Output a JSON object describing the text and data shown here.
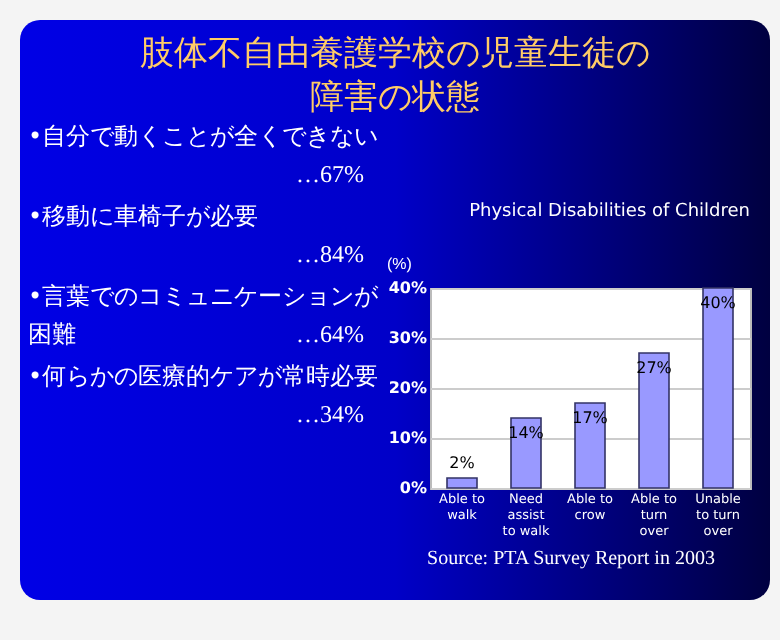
{
  "chart_data": [
    {
      "type": "other",
      "title": "肢体不自由養護学校の児童生徒の障害の状態",
      "annotations": [
        "•自分で動くことが全くできない",
        "…67%",
        "•移動に車椅子が必要",
        "…84%",
        "•言葉でのコミュニケーションが困難",
        "…64%",
        "•何らかの医療的ケアが常時必要",
        "…34%"
      ]
    },
    {
      "type": "bar",
      "title": "Physical Disabilities of Children",
      "ylabel": "(%)",
      "categories": [
        "Able to walk",
        "Need assist to walk",
        "Able to crow",
        "Able to turn over",
        "Unable to turn over"
      ],
      "values": [
        2,
        14,
        17,
        27,
        40
      ],
      "color": "#9999ff",
      "value_labels": [
        "2%",
        "14%",
        "17%",
        "27%",
        "40%"
      ],
      "ylim": [
        0,
        40
      ],
      "yticks": [
        {
          "value": 0,
          "label": "0%"
        },
        {
          "value": 10,
          "label": "10%"
        },
        {
          "value": 20,
          "label": "20%"
        },
        {
          "value": 30,
          "label": "30%"
        },
        {
          "value": 40,
          "label": "40%"
        }
      ],
      "grid": "y",
      "annotations": [
        "Source: PTA Survey Report in 2003"
      ]
    }
  ]
}
